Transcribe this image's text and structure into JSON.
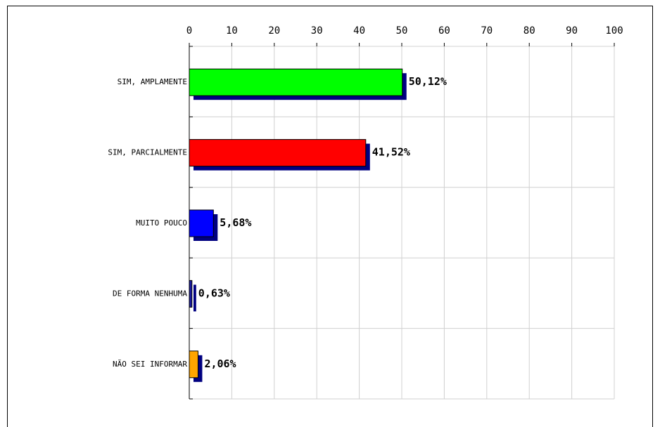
{
  "chart_data": {
    "type": "bar",
    "orientation": "horizontal",
    "categories": [
      "SIM, AMPLAMENTE",
      "SIM, PARCIALMENTE",
      "MUITO POUCO",
      "DE FORMA NENHUMA",
      "NÃO SEI INFORMAR"
    ],
    "values": [
      50.12,
      41.52,
      5.68,
      0.63,
      2.06
    ],
    "value_labels": [
      "50,12%",
      "41,52%",
      "5,68%",
      "0,63%",
      "2,06%"
    ],
    "colors": [
      "#00ff00",
      "#ff0000",
      "#0000ff",
      "#1a1aa0",
      "#ffa500"
    ],
    "shadow_color": "#000080",
    "xticks": [
      "0",
      "10",
      "20",
      "30",
      "40",
      "50",
      "60",
      "70",
      "80",
      "90",
      "100"
    ],
    "xlim": [
      0,
      100
    ],
    "grid": true,
    "title": "",
    "xlabel": "",
    "ylabel": ""
  }
}
